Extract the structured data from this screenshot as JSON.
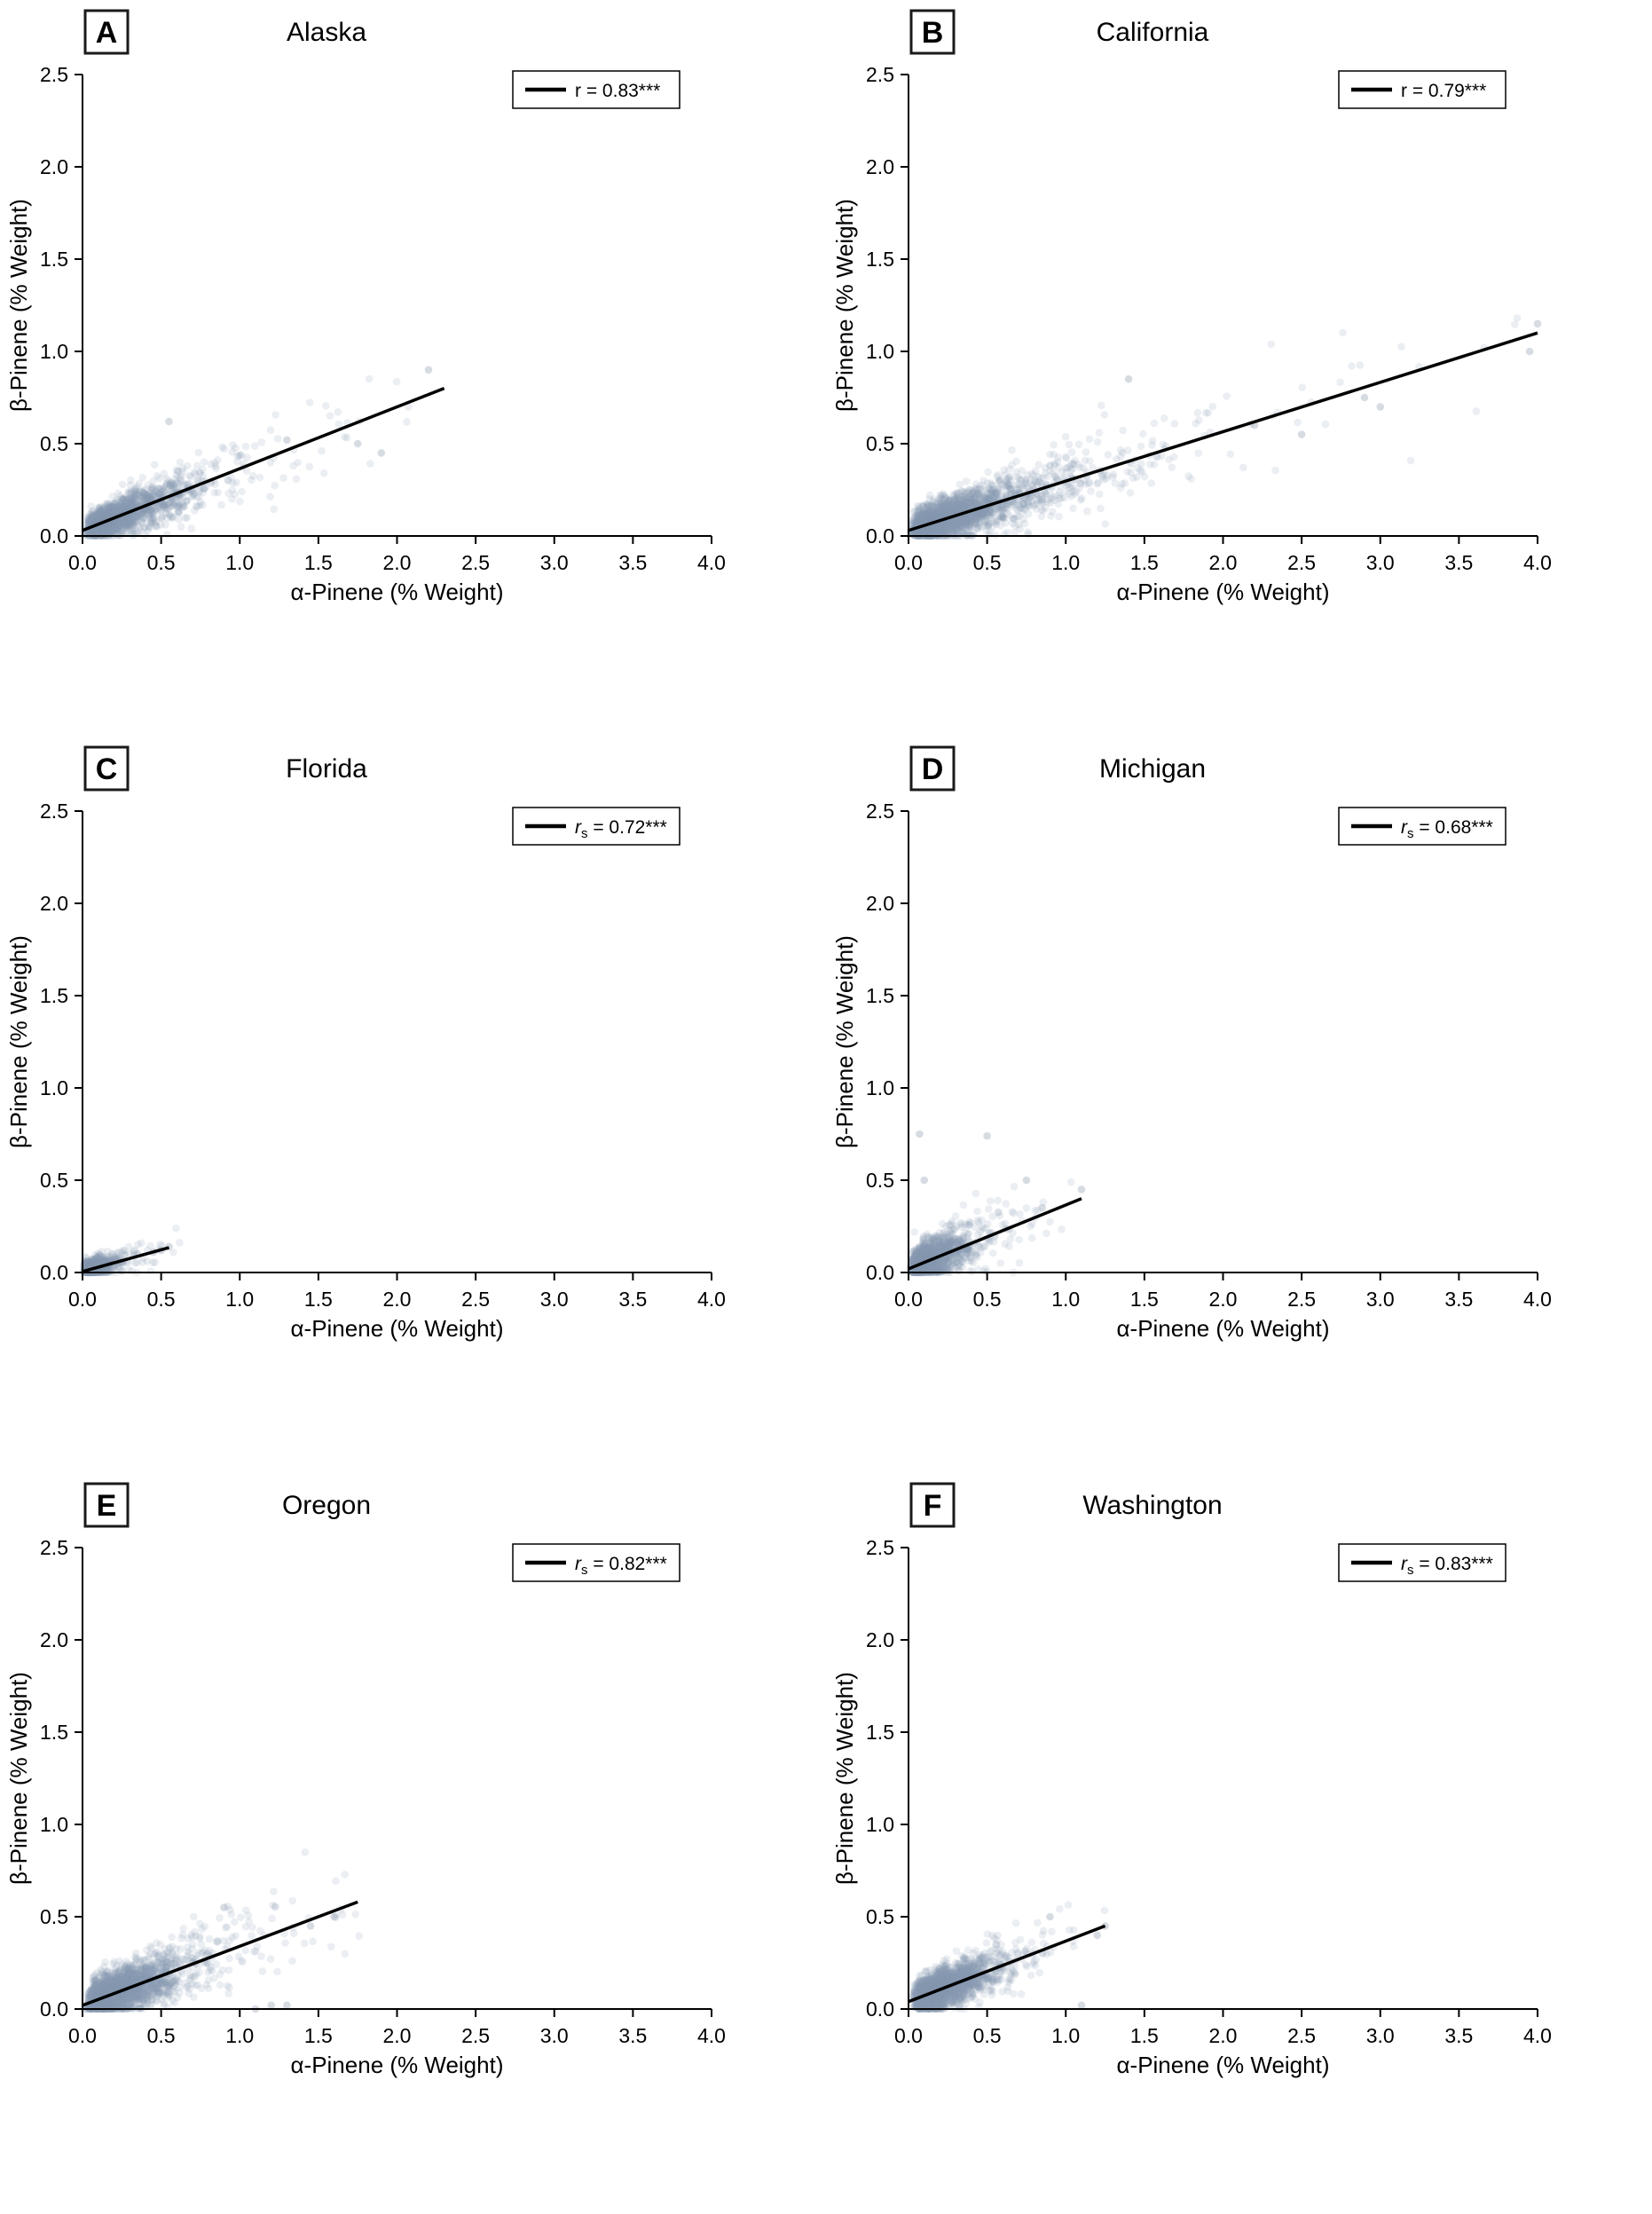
{
  "figure": {
    "background_color": "#ffffff",
    "axis_color": "#000000",
    "regression_line_color": "#000000",
    "point_color": "#8b9ab0",
    "point_opacity": 0.17,
    "xlabel": "α-Pinene (% Weight)",
    "ylabel": "β-Pinene (% Weight)",
    "xlim": [
      0.0,
      4.0
    ],
    "ylim": [
      0.0,
      2.5
    ],
    "xticks": [
      0.0,
      0.5,
      1.0,
      1.5,
      2.0,
      2.5,
      3.0,
      3.5,
      4.0
    ],
    "yticks": [
      0.0,
      0.5,
      1.0,
      1.5,
      2.0,
      2.5
    ],
    "grid": false,
    "legend_position": "top-right"
  },
  "chart_data": {
    "type": "scatter",
    "panels": [
      {
        "letter": "A",
        "title": "Alaska",
        "legend": {
          "r_symbol": "r",
          "subscript": "",
          "italic": false,
          "value": "0.83",
          "stars": "***"
        },
        "regression_line": {
          "x": [
            0.0,
            2.3
          ],
          "y": [
            0.03,
            0.8
          ]
        },
        "scatter": {
          "n": 1700,
          "x_median": 0.22,
          "x_max": 2.35,
          "noise_base": 0.035,
          "noise_slope": 0.055,
          "seed": 101
        },
        "extra_points": [
          [
            2.2,
            0.9
          ],
          [
            1.75,
            0.5
          ],
          [
            1.3,
            0.52
          ],
          [
            0.55,
            0.62
          ],
          [
            1.9,
            0.45
          ]
        ]
      },
      {
        "letter": "B",
        "title": "California",
        "legend": {
          "r_symbol": "r",
          "subscript": "",
          "italic": false,
          "value": "0.79",
          "stars": "***"
        },
        "regression_line": {
          "x": [
            0.0,
            4.0
          ],
          "y": [
            0.03,
            1.1
          ]
        },
        "scatter": {
          "n": 2300,
          "x_median": 0.25,
          "x_max": 4.0,
          "noise_base": 0.04,
          "noise_slope": 0.05,
          "seed": 202
        },
        "extra_points": [
          [
            3.95,
            1.0
          ],
          [
            4.0,
            1.15
          ],
          [
            3.0,
            0.7
          ],
          [
            2.5,
            0.55
          ],
          [
            2.2,
            0.6
          ],
          [
            1.4,
            0.85
          ],
          [
            2.9,
            0.75
          ]
        ]
      },
      {
        "letter": "C",
        "title": "Florida",
        "legend": {
          "r_symbol": "r",
          "subscript": "s",
          "italic": true,
          "value": "0.72",
          "stars": "***"
        },
        "regression_line": {
          "x": [
            0.0,
            0.55
          ],
          "y": [
            0.005,
            0.135
          ]
        },
        "scatter": {
          "n": 900,
          "x_median": 0.07,
          "x_max": 0.62,
          "noise_base": 0.022,
          "noise_slope": 0.05,
          "seed": 303
        },
        "extra_points": [
          [
            0.5,
            0.12
          ],
          [
            0.55,
            0.14
          ],
          [
            0.35,
            0.1
          ],
          [
            0.45,
            0.11
          ]
        ]
      },
      {
        "letter": "D",
        "title": "Michigan",
        "legend": {
          "r_symbol": "r",
          "subscript": "s",
          "italic": true,
          "value": "0.68",
          "stars": "***"
        },
        "regression_line": {
          "x": [
            0.0,
            1.1
          ],
          "y": [
            0.02,
            0.4
          ]
        },
        "scatter": {
          "n": 1400,
          "x_median": 0.13,
          "x_max": 1.12,
          "noise_base": 0.045,
          "noise_slope": 0.07,
          "seed": 404
        },
        "extra_points": [
          [
            0.07,
            0.75
          ],
          [
            0.5,
            0.74
          ],
          [
            0.1,
            0.5
          ],
          [
            0.75,
            0.5
          ],
          [
            1.1,
            0.45
          ],
          [
            0.85,
            0.35
          ]
        ]
      },
      {
        "letter": "E",
        "title": "Oregon",
        "legend": {
          "r_symbol": "r",
          "subscript": "s",
          "italic": true,
          "value": "0.82",
          "stars": "***"
        },
        "regression_line": {
          "x": [
            0.0,
            1.75
          ],
          "y": [
            0.02,
            0.58
          ]
        },
        "scatter": {
          "n": 2300,
          "x_median": 0.22,
          "x_max": 1.78,
          "noise_base": 0.045,
          "noise_slope": 0.06,
          "seed": 505
        },
        "extra_points": [
          [
            1.3,
            0.02
          ],
          [
            1.1,
            0.0
          ],
          [
            0.9,
            0.55
          ],
          [
            1.2,
            0.02
          ],
          [
            1.45,
            0.45
          ],
          [
            1.6,
            0.5
          ]
        ]
      },
      {
        "letter": "F",
        "title": "Washington",
        "legend": {
          "r_symbol": "r",
          "subscript": "s",
          "italic": true,
          "value": "0.83",
          "stars": "***"
        },
        "regression_line": {
          "x": [
            0.0,
            1.25
          ],
          "y": [
            0.04,
            0.45
          ]
        },
        "scatter": {
          "n": 2300,
          "x_median": 0.2,
          "x_max": 1.32,
          "noise_base": 0.04,
          "noise_slope": 0.06,
          "seed": 606
        },
        "extra_points": [
          [
            1.25,
            0.45
          ],
          [
            0.9,
            0.5
          ],
          [
            1.1,
            0.02
          ],
          [
            1.2,
            0.4
          ]
        ]
      }
    ]
  }
}
